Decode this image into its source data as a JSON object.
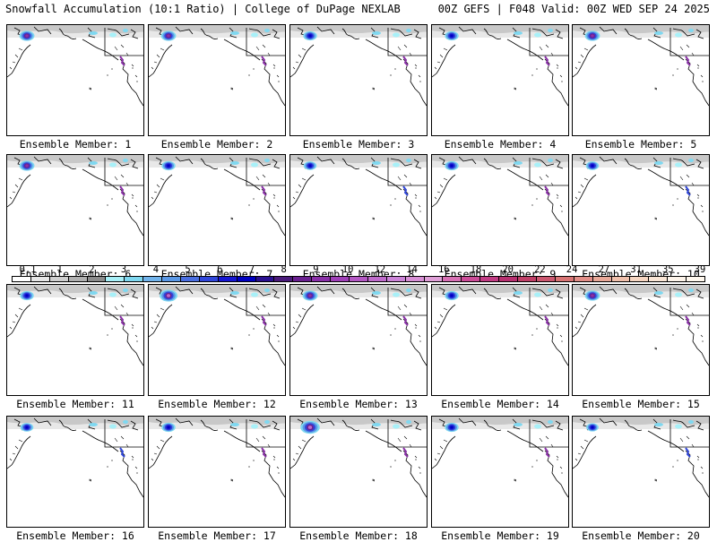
{
  "header": {
    "left": "Snowfall Accumulation (10:1 Ratio) | College of DuPage NEXLAB",
    "right": "00Z GEFS | F048 Valid: 00Z WED SEP 24 2025"
  },
  "chart_data": {
    "type": "heatmap",
    "title": "Snowfall Accumulation (10:1 Ratio)",
    "model": "00Z GEFS",
    "forecast_hour": "F048",
    "valid": "00Z WED SEP 24 2025",
    "panels": [
      {
        "caption": "Ensemble Member: 1",
        "member": 1,
        "max_inches": 8
      },
      {
        "caption": "Ensemble Member: 2",
        "member": 2,
        "max_inches": 8
      },
      {
        "caption": "Ensemble Member: 3",
        "member": 3,
        "max_inches": 6
      },
      {
        "caption": "Ensemble Member: 4",
        "member": 4,
        "max_inches": 6
      },
      {
        "caption": "Ensemble Member: 5",
        "member": 5,
        "max_inches": 8
      },
      {
        "caption": "Ensemble Member: 6",
        "member": 6,
        "max_inches": 8
      },
      {
        "caption": "Ensemble Member: 7",
        "member": 7,
        "max_inches": 6
      },
      {
        "caption": "Ensemble Member: 8",
        "member": 8,
        "max_inches": 5
      },
      {
        "caption": "Ensemble Member: 9",
        "member": 9,
        "max_inches": 6
      },
      {
        "caption": "Ensemble Member: 10",
        "member": 10,
        "max_inches": 5
      },
      {
        "caption": "Ensemble Member: 11",
        "member": 11,
        "max_inches": 6
      },
      {
        "caption": "Ensemble Member: 12",
        "member": 12,
        "max_inches": 12
      },
      {
        "caption": "Ensemble Member: 13",
        "member": 13,
        "max_inches": 8
      },
      {
        "caption": "Ensemble Member: 14",
        "member": 14,
        "max_inches": 6
      },
      {
        "caption": "Ensemble Member: 15",
        "member": 15,
        "max_inches": 8
      },
      {
        "caption": "Ensemble Member: 16",
        "member": 16,
        "max_inches": 5
      },
      {
        "caption": "Ensemble Member: 17",
        "member": 17,
        "max_inches": 6
      },
      {
        "caption": "Ensemble Member: 18",
        "member": 18,
        "max_inches": 14
      },
      {
        "caption": "Ensemble Member: 19",
        "member": 19,
        "max_inches": 6
      },
      {
        "caption": "Ensemble Member: 20",
        "member": 20,
        "max_inches": 4
      }
    ],
    "legend": {
      "labels": [
        "0.1",
        "1",
        "2",
        "3",
        "4",
        "5",
        "6",
        "7",
        "8",
        "9",
        "10",
        "12",
        "14",
        "16",
        "18",
        "20",
        "22",
        "24",
        "27",
        "31",
        "35",
        "39"
      ],
      "colors": [
        "#ffffff",
        "#e6e6e6",
        "#cfcfcf",
        "#b0b0b0",
        "#8c8c8c",
        "#a8f0f8",
        "#7fd8f0",
        "#72b4ec",
        "#5a98e6",
        "#4a6ee0",
        "#3046da",
        "#1616d2",
        "#0000c0",
        "#2a1090",
        "#4a1a7a",
        "#6a2090",
        "#8a30a8",
        "#a040b8",
        "#b458c4",
        "#c06ccc",
        "#cc84d8",
        "#d890d6",
        "#e0a0d8",
        "#d870b4",
        "#cc4c98",
        "#c23c84",
        "#b83070",
        "#c04068",
        "#cc5870",
        "#d87474",
        "#e28e88",
        "#e8a898",
        "#f0c0ac",
        "#f6d6c2",
        "#fae6d6",
        "#fdf4ea",
        "#fff8ee"
      ]
    }
  }
}
